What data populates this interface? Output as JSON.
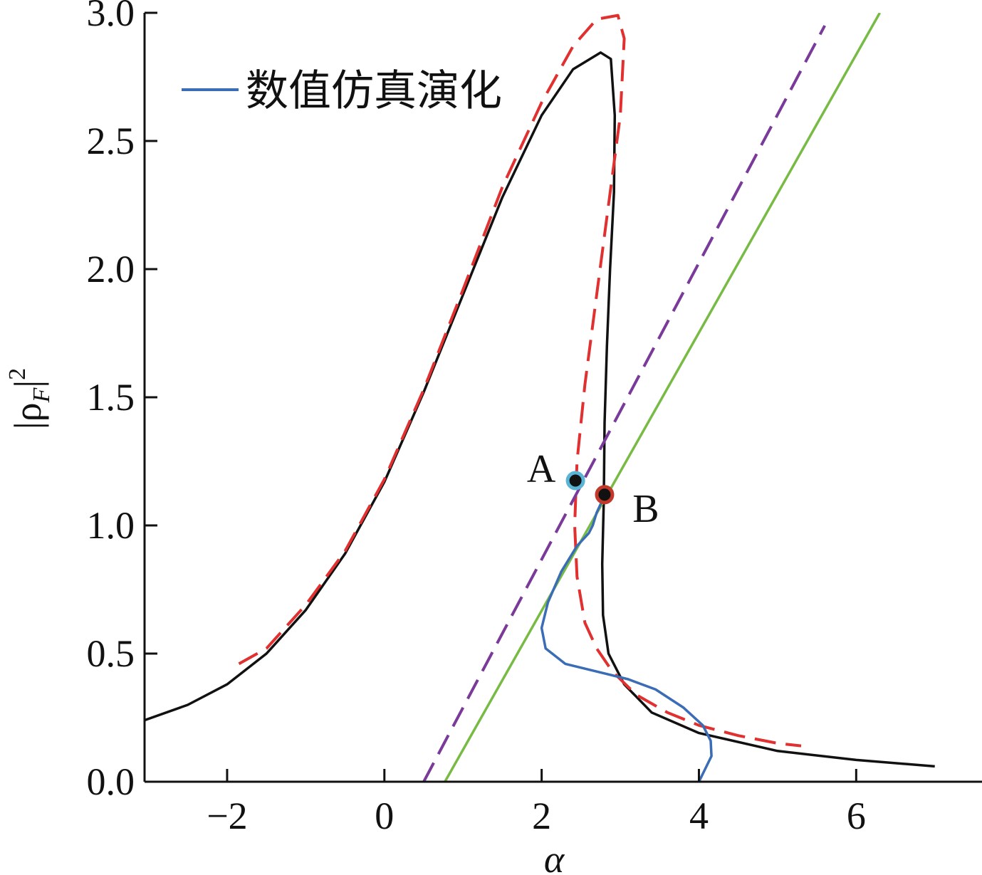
{
  "chart_data": {
    "type": "line",
    "xlabel": "α",
    "ylabel_main": "|ρ",
    "ylabel_sub": "F",
    "ylabel_bar": "|",
    "ylabel_sup": "2",
    "xlim": [
      -3.05,
      7.6
    ],
    "ylim": [
      0,
      3.0
    ],
    "xticks": [
      -2,
      0,
      2,
      4,
      6
    ],
    "xtick_labels": [
      "−2",
      "0",
      "2",
      "4",
      "6"
    ],
    "yticks": [
      0,
      0.5,
      1.0,
      1.5,
      2.0,
      2.5,
      3.0
    ],
    "ytick_labels": [
      "0.0",
      "0.5",
      "1.0",
      "1.5",
      "2.0",
      "2.5",
      "3.0"
    ],
    "grid": false,
    "legend": {
      "position": "top-left",
      "entries": [
        {
          "label": "数值仿真演化",
          "color": "#3a6db5"
        }
      ]
    },
    "series": [
      {
        "key": "black-curve",
        "style": "solid",
        "color": "#111111",
        "points": [
          [
            -3.05,
            0.24
          ],
          [
            -2.5,
            0.3
          ],
          [
            -2.0,
            0.38
          ],
          [
            -1.5,
            0.5
          ],
          [
            -1.0,
            0.67
          ],
          [
            -0.5,
            0.89
          ],
          [
            0,
            1.17
          ],
          [
            0.5,
            1.52
          ],
          [
            1.0,
            1.9
          ],
          [
            1.5,
            2.28
          ],
          [
            2.0,
            2.6
          ],
          [
            2.4,
            2.78
          ],
          [
            2.75,
            2.845
          ],
          [
            2.88,
            2.82
          ],
          [
            2.93,
            2.6
          ],
          [
            2.92,
            2.3
          ],
          [
            2.87,
            2.0
          ],
          [
            2.83,
            1.7
          ],
          [
            2.8,
            1.4
          ],
          [
            2.79,
            1.1
          ],
          [
            2.77,
            0.85
          ],
          [
            2.78,
            0.65
          ],
          [
            2.85,
            0.5
          ],
          [
            3.05,
            0.38
          ],
          [
            3.4,
            0.27
          ],
          [
            4.0,
            0.19
          ],
          [
            5.0,
            0.12
          ],
          [
            6.0,
            0.085
          ],
          [
            7.0,
            0.06
          ]
        ]
      },
      {
        "key": "red-dashed",
        "style": "dashed",
        "color": "#e03030",
        "points": [
          [
            -1.85,
            0.46
          ],
          [
            -1.5,
            0.52
          ],
          [
            -1.0,
            0.69
          ],
          [
            -0.5,
            0.9
          ],
          [
            0,
            1.18
          ],
          [
            0.5,
            1.53
          ],
          [
            1.0,
            1.92
          ],
          [
            1.5,
            2.32
          ],
          [
            2.0,
            2.65
          ],
          [
            2.4,
            2.87
          ],
          [
            2.7,
            2.975
          ],
          [
            2.97,
            2.99
          ],
          [
            3.05,
            2.9
          ],
          [
            3.0,
            2.6
          ],
          [
            2.85,
            2.25
          ],
          [
            2.7,
            1.9
          ],
          [
            2.55,
            1.55
          ],
          [
            2.45,
            1.25
          ],
          [
            2.42,
            1.0
          ],
          [
            2.45,
            0.8
          ],
          [
            2.55,
            0.62
          ],
          [
            2.7,
            0.52
          ],
          [
            2.9,
            0.43
          ],
          [
            3.2,
            0.34
          ],
          [
            3.6,
            0.27
          ],
          [
            4.0,
            0.22
          ],
          [
            4.5,
            0.18
          ],
          [
            5.0,
            0.15
          ],
          [
            5.3,
            0.14
          ]
        ]
      },
      {
        "key": "purple-dashed",
        "style": "dashed",
        "color": "#7a3a9a",
        "points": [
          [
            0.5,
            0.0
          ],
          [
            5.6,
            2.95
          ]
        ]
      },
      {
        "key": "green-line",
        "style": "solid",
        "color": "#77bb44",
        "points": [
          [
            0.77,
            0.0
          ],
          [
            6.3,
            3.0
          ]
        ]
      },
      {
        "key": "blue-simulation",
        "style": "solid",
        "color": "#3a6db5",
        "points": [
          [
            4.0,
            0.0
          ],
          [
            4.08,
            0.05
          ],
          [
            4.16,
            0.1
          ],
          [
            4.15,
            0.16
          ],
          [
            4.05,
            0.22
          ],
          [
            3.8,
            0.29
          ],
          [
            3.45,
            0.36
          ],
          [
            3.1,
            0.4
          ],
          [
            2.7,
            0.43
          ],
          [
            2.3,
            0.46
          ],
          [
            2.05,
            0.52
          ],
          [
            2.0,
            0.6
          ],
          [
            2.08,
            0.7
          ],
          [
            2.25,
            0.82
          ],
          [
            2.45,
            0.92
          ],
          [
            2.6,
            0.97
          ],
          [
            2.65,
            1.0
          ],
          [
            2.7,
            1.05
          ],
          [
            2.76,
            1.09
          ]
        ]
      }
    ],
    "points": [
      {
        "label": "A",
        "x": 2.43,
        "y": 1.175,
        "ring_color": "#5ab4d6"
      },
      {
        "label": "B",
        "x": 2.8,
        "y": 1.12,
        "ring_color": "#c0392b"
      }
    ]
  }
}
